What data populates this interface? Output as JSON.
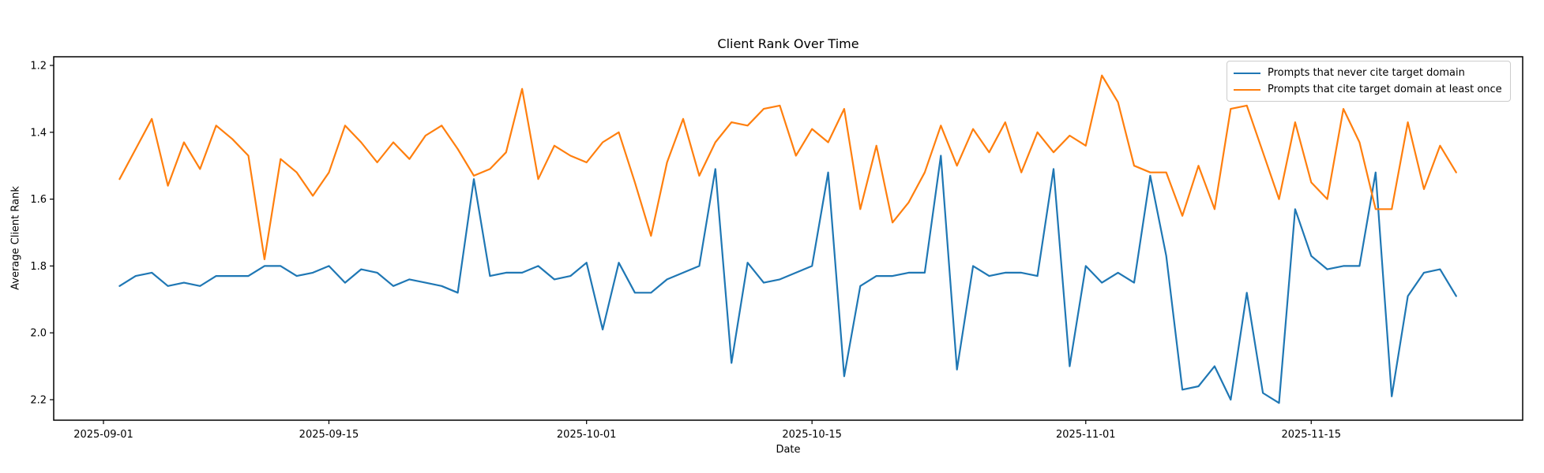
{
  "figure": {
    "background": "#ffffff",
    "axes_edge_color": "#000000",
    "tick_color": "#000000"
  },
  "chart_data": {
    "type": "line",
    "title": "Client Rank Over Time",
    "xlabel": "Date",
    "ylabel": "Average Client Rank",
    "grid": false,
    "legend_position": "upper right",
    "y_axis_inverted": true,
    "ylim_display": [
      2.26,
      1.17
    ],
    "yticks": [
      1.2,
      1.4,
      1.6,
      1.8,
      2.0,
      2.2
    ],
    "xticks": [
      "2025-09-01",
      "2025-09-15",
      "2025-10-01",
      "2025-10-15",
      "2025-11-01",
      "2025-11-15"
    ],
    "x": [
      "2025-09-02",
      "2025-09-03",
      "2025-09-04",
      "2025-09-05",
      "2025-09-06",
      "2025-09-07",
      "2025-09-08",
      "2025-09-09",
      "2025-09-10",
      "2025-09-11",
      "2025-09-12",
      "2025-09-13",
      "2025-09-14",
      "2025-09-15",
      "2025-09-16",
      "2025-09-17",
      "2025-09-18",
      "2025-09-19",
      "2025-09-20",
      "2025-09-21",
      "2025-09-22",
      "2025-09-23",
      "2025-09-24",
      "2025-09-25",
      "2025-09-26",
      "2025-09-27",
      "2025-09-28",
      "2025-09-29",
      "2025-09-30",
      "2025-10-01",
      "2025-10-02",
      "2025-10-03",
      "2025-10-04",
      "2025-10-05",
      "2025-10-06",
      "2025-10-07",
      "2025-10-08",
      "2025-10-09",
      "2025-10-10",
      "2025-10-11",
      "2025-10-12",
      "2025-10-13",
      "2025-10-14",
      "2025-10-15",
      "2025-10-16",
      "2025-10-17",
      "2025-10-18",
      "2025-10-19",
      "2025-10-20",
      "2025-10-21",
      "2025-10-22",
      "2025-10-23",
      "2025-10-24",
      "2025-10-25",
      "2025-10-26",
      "2025-10-27",
      "2025-10-28",
      "2025-10-29",
      "2025-10-30",
      "2025-10-31",
      "2025-11-01",
      "2025-11-02",
      "2025-11-03",
      "2025-11-04",
      "2025-11-05",
      "2025-11-06",
      "2025-11-07",
      "2025-11-08",
      "2025-11-09",
      "2025-11-10",
      "2025-11-11",
      "2025-11-12",
      "2025-11-13",
      "2025-11-14",
      "2025-11-15",
      "2025-11-16",
      "2025-11-17",
      "2025-11-18",
      "2025-11-19",
      "2025-11-20",
      "2025-11-21",
      "2025-11-22",
      "2025-11-23",
      "2025-11-24"
    ],
    "series": [
      {
        "name": "Prompts that never cite target domain",
        "color": "#1f77b4",
        "values": [
          1.86,
          1.83,
          1.82,
          1.86,
          1.85,
          1.86,
          1.83,
          1.83,
          1.83,
          1.8,
          1.8,
          1.83,
          1.82,
          1.8,
          1.85,
          1.81,
          1.82,
          1.86,
          1.84,
          1.85,
          1.86,
          1.88,
          1.54,
          1.83,
          1.82,
          1.82,
          1.8,
          1.84,
          1.83,
          1.79,
          1.99,
          1.79,
          1.88,
          1.88,
          1.84,
          1.82,
          1.8,
          1.51,
          2.09,
          1.79,
          1.85,
          1.84,
          1.82,
          1.8,
          1.52,
          2.13,
          1.86,
          1.83,
          1.83,
          1.82,
          1.82,
          1.47,
          2.11,
          1.8,
          1.83,
          1.82,
          1.82,
          1.83,
          1.51,
          2.1,
          1.8,
          1.85,
          1.82,
          1.85,
          1.53,
          1.77,
          2.17,
          2.16,
          2.1,
          2.2,
          1.88,
          2.18,
          2.21,
          1.63,
          1.77,
          1.81,
          1.8,
          1.8,
          1.52,
          2.19,
          1.89,
          1.82,
          1.81,
          1.89
        ]
      },
      {
        "name": "Prompts that cite target domain at least once",
        "color": "#ff7f0e",
        "values": [
          1.54,
          1.45,
          1.36,
          1.56,
          1.43,
          1.51,
          1.38,
          1.42,
          1.47,
          1.78,
          1.48,
          1.52,
          1.59,
          1.52,
          1.38,
          1.43,
          1.49,
          1.43,
          1.48,
          1.41,
          1.38,
          1.45,
          1.53,
          1.51,
          1.46,
          1.27,
          1.54,
          1.44,
          1.47,
          1.49,
          1.43,
          1.4,
          1.55,
          1.71,
          1.49,
          1.36,
          1.53,
          1.43,
          1.37,
          1.38,
          1.33,
          1.32,
          1.47,
          1.39,
          1.43,
          1.33,
          1.63,
          1.44,
          1.67,
          1.61,
          1.52,
          1.38,
          1.5,
          1.39,
          1.46,
          1.37,
          1.52,
          1.4,
          1.46,
          1.41,
          1.44,
          1.23,
          1.31,
          1.5,
          1.52,
          1.52,
          1.65,
          1.5,
          1.63,
          1.33,
          1.32,
          1.46,
          1.6,
          1.37,
          1.55,
          1.6,
          1.33,
          1.43,
          1.63,
          1.63,
          1.37,
          1.57,
          1.44,
          1.52
        ]
      }
    ]
  }
}
